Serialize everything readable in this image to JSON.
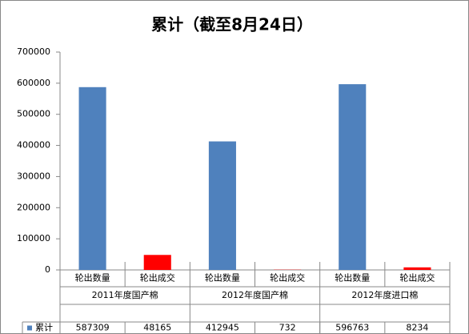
{
  "chart_data": {
    "type": "bar",
    "title": "累计（截至8月24日）",
    "categories": [
      "轮出数量",
      "轮出成交",
      "轮出数量",
      "轮出成交",
      "轮出数量",
      "轮出成交"
    ],
    "groups": [
      "2011年度国产棉",
      "2012年度国产棉",
      "2012年度进口棉"
    ],
    "series": [
      {
        "name": "累计",
        "color": "#4f81bd",
        "point_colors": [
          "#4f81bd",
          "#ff0000",
          "#4f81bd",
          "#ff0000",
          "#4f81bd",
          "#ff0000"
        ],
        "values": [
          587309,
          48165,
          412945,
          732,
          596763,
          8234
        ]
      }
    ],
    "ylim": [
      0,
      700000
    ],
    "yticks": [
      0,
      100000,
      200000,
      300000,
      400000,
      500000,
      600000,
      700000
    ],
    "grid": false,
    "data_table": true
  }
}
